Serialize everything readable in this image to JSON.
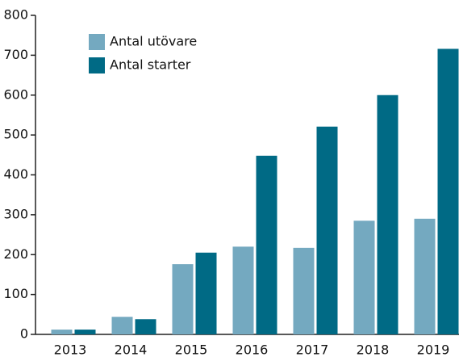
{
  "chart_data": {
    "type": "bar",
    "categories": [
      "2013",
      "2014",
      "2015",
      "2016",
      "2017",
      "2018",
      "2019"
    ],
    "series": [
      {
        "name": "Antal utövare",
        "color": "#74a9c0",
        "values": [
          12,
          44,
          176,
          220,
          217,
          285,
          290
        ]
      },
      {
        "name": "Antal starter",
        "color": "#006a85",
        "values": [
          12,
          38,
          205,
          448,
          521,
          600,
          716
        ]
      }
    ],
    "ylim": [
      0,
      800
    ],
    "yticks": [
      0,
      100,
      200,
      300,
      400,
      500,
      600,
      700,
      800
    ],
    "grid": false,
    "legend": "upper left"
  }
}
